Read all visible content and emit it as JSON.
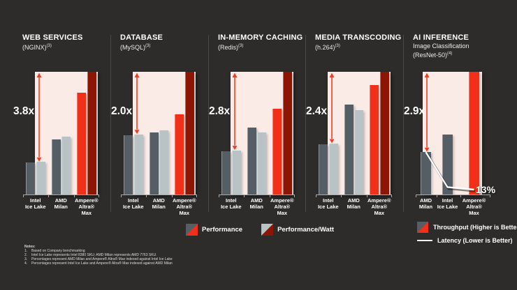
{
  "slide": {
    "background": "#2d2c2b",
    "colors": {
      "pink_panel": "#fbebe7",
      "bar_dark_gray": "#545e64",
      "bar_light_gray": "#b9c3c6",
      "bar_red": "#f23019",
      "bar_dark_red": "#8c1503",
      "arrow_red": "#ee3d26",
      "divider": "#4b4947",
      "axis": "#a9a9a9",
      "text_white": "#ffffff"
    }
  },
  "chart_data": [
    {
      "type": "bar",
      "title": "WEB SERVICES",
      "subtitle_lines": [
        "(NGINX)"
      ],
      "footnote": "(3)",
      "multiplier_label": "3.8x",
      "categories": [
        [
          "Intel",
          "Ice Lake"
        ],
        [
          "AMD",
          "Milan"
        ],
        [
          "Ampere®",
          "Altra®",
          "Max"
        ]
      ],
      "series": [
        {
          "name": "Performance",
          "values": [
            0.26,
            0.45,
            0.83
          ],
          "colors": [
            "bar_dark_gray",
            "bar_dark_gray",
            "bar_red"
          ]
        },
        {
          "name": "Performance/Watt",
          "values": [
            0.265,
            0.47,
            1.0
          ],
          "colors": [
            "bar_light_gray",
            "bar_light_gray",
            "bar_dark_red"
          ]
        }
      ],
      "arrow_to_value": 0.265,
      "ylim": [
        0,
        1
      ]
    },
    {
      "type": "bar",
      "title": "DATABASE",
      "subtitle_lines": [
        "(MySQL)"
      ],
      "footnote": "(3)",
      "multiplier_label": "2.0x",
      "categories": [
        [
          "Intel",
          "Ice Lake"
        ],
        [
          "AMD",
          "Milan"
        ],
        [
          "Ampere®",
          "Altra®",
          "Max"
        ]
      ],
      "series": [
        {
          "name": "Performance",
          "values": [
            0.485,
            0.505,
            0.655
          ],
          "colors": [
            "bar_dark_gray",
            "bar_dark_gray",
            "bar_red"
          ]
        },
        {
          "name": "Performance/Watt",
          "values": [
            0.49,
            0.525,
            1.0
          ],
          "colors": [
            "bar_light_gray",
            "bar_light_gray",
            "bar_dark_red"
          ]
        }
      ],
      "arrow_to_value": 0.49,
      "ylim": [
        0,
        1
      ]
    },
    {
      "type": "bar",
      "title": "IN-MEMORY CACHING",
      "subtitle_lines": [
        "(Redis)"
      ],
      "footnote": "(3)",
      "multiplier_label": "2.8x",
      "categories": [
        [
          "Intel",
          "Ice Lake"
        ],
        [
          "AMD",
          "Milan"
        ],
        [
          "Ampere®",
          "Altra®",
          "Max"
        ]
      ],
      "series": [
        {
          "name": "Performance",
          "values": [
            0.355,
            0.545,
            0.7
          ],
          "colors": [
            "bar_dark_gray",
            "bar_dark_gray",
            "bar_red"
          ]
        },
        {
          "name": "Performance/Watt",
          "values": [
            0.36,
            0.505,
            1.0
          ],
          "colors": [
            "bar_light_gray",
            "bar_light_gray",
            "bar_dark_red"
          ]
        }
      ],
      "arrow_to_value": 0.36,
      "ylim": [
        0,
        1
      ]
    },
    {
      "type": "bar",
      "title": "MEDIA TRANSCODING",
      "subtitle_lines": [
        "(h.264)"
      ],
      "footnote": "(3)",
      "multiplier_label": "2.4x",
      "categories": [
        [
          "Intel",
          "Ice Lake"
        ],
        [
          "AMD",
          "Milan"
        ],
        [
          "Ampere®",
          "Altra®",
          "Max"
        ]
      ],
      "series": [
        {
          "name": "Performance",
          "values": [
            0.41,
            0.735,
            0.89
          ],
          "colors": [
            "bar_dark_gray",
            "bar_dark_gray",
            "bar_red"
          ]
        },
        {
          "name": "Performance/Watt",
          "values": [
            0.415,
            0.69,
            1.0
          ],
          "colors": [
            "bar_light_gray",
            "bar_light_gray",
            "bar_dark_red"
          ]
        }
      ],
      "arrow_to_value": 0.415,
      "ylim": [
        0,
        1
      ]
    },
    {
      "type": "bar+line",
      "title": "AI INFERENCE",
      "subtitle_lines": [
        "Image Classification",
        "(ResNet-50)"
      ],
      "footnote": "(4)",
      "multiplier_label": "2.9x",
      "categories": [
        [
          "AMD",
          "Milan"
        ],
        [
          "Intel",
          "Ice Lake"
        ],
        [
          "Ampere®",
          "Altra®",
          "Max"
        ]
      ],
      "series": [
        {
          "name": "Throughput",
          "values": [
            0.345,
            0.49,
            1.0
          ],
          "colors": [
            "bar_dark_gray",
            "bar_dark_gray",
            "bar_red"
          ]
        }
      ],
      "arrow_to_value": 0.345,
      "latency_line": {
        "label": "13%",
        "values": [
          0.345,
          0.06,
          0.04
        ]
      },
      "ylim": [
        0,
        1
      ]
    }
  ],
  "legend": {
    "bottom": [
      {
        "label": "Performance",
        "swatch_top_left": "bar_dark_gray",
        "swatch_bottom_right": "bar_red"
      },
      {
        "label": "Performance/Watt",
        "swatch_top_left": "bar_light_gray",
        "swatch_bottom_right": "bar_dark_red"
      }
    ],
    "right": {
      "throughput_label": "Throughput (Higher is Better)",
      "throughput_swatch": {
        "top_left": "bar_dark_gray",
        "bottom_right": "bar_red"
      },
      "latency_label": "Latency (Lower is Better)"
    }
  },
  "notes": {
    "heading": "Notes:",
    "items": [
      "Based on Company benchmarking",
      "Intel Ice Lake represents Intel 8380 SKU; AMD Milan represents AMD 7763 SKU.",
      "Percentages represent AMD Milan and Ampere® Altra® Max indexed against Intel Ice Lake",
      "Percentages represent Intel Ice Lake and Ampere® Altra® Max indexed against AMD Milan"
    ]
  }
}
